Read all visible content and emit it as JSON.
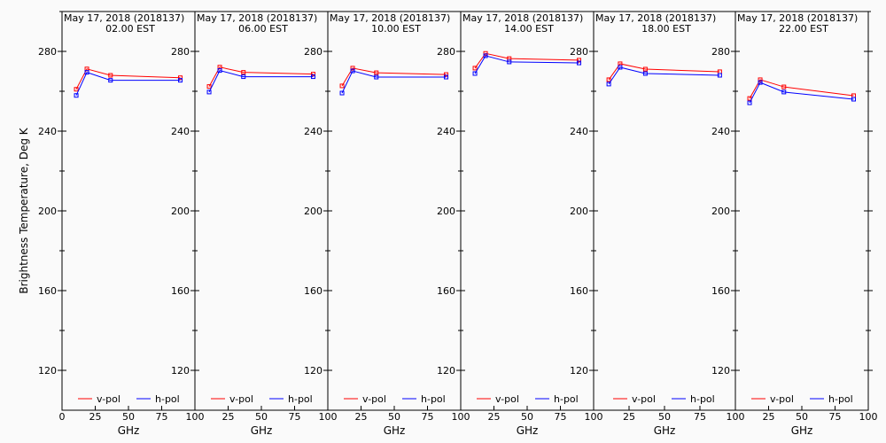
{
  "chart_data": {
    "type": "line",
    "ylabel": "Brightness Temperature, Deg K",
    "xlabel": "GHz",
    "xlim": [
      0,
      100
    ],
    "ylim": [
      100,
      300
    ],
    "x_ticks": [
      "0",
      "25",
      "50",
      "75",
      "100"
    ],
    "y_ticks": [
      "120",
      "160",
      "200",
      "240",
      "280"
    ],
    "legend": [
      "v-pol",
      "h-pol"
    ],
    "legend_placement": "bottom",
    "colors": {
      "v-pol": "#ff0000",
      "h-pol": "#0000ff"
    },
    "x": [
      10.7,
      18.7,
      36.5,
      89.0
    ],
    "panels": [
      {
        "title": "May 17, 2018 (2018137)",
        "subtitle": "02.00 EST",
        "series": [
          {
            "name": "v-pol",
            "values": [
              261.0,
              271.2,
              268.0,
              266.8
            ]
          },
          {
            "name": "h-pol",
            "values": [
              257.9,
              269.5,
              265.5,
              265.5
            ]
          }
        ]
      },
      {
        "title": "May 17, 2018 (2018137)",
        "subtitle": "06.00 EST",
        "series": [
          {
            "name": "v-pol",
            "values": [
              262.4,
              272.1,
              269.5,
              268.6
            ]
          },
          {
            "name": "h-pol",
            "values": [
              259.6,
              270.4,
              267.3,
              267.3
            ]
          }
        ]
      },
      {
        "title": "May 17, 2018 (2018137)",
        "subtitle": "10.00 EST",
        "series": [
          {
            "name": "v-pol",
            "values": [
              262.7,
              271.6,
              269.3,
              268.4
            ]
          },
          {
            "name": "h-pol",
            "values": [
              259.1,
              270.2,
              267.1,
              267.1
            ]
          }
        ]
      },
      {
        "title": "May 17, 2018 (2018137)",
        "subtitle": "14.00 EST",
        "series": [
          {
            "name": "v-pol",
            "values": [
              271.6,
              279.0,
              276.4,
              275.6
            ]
          },
          {
            "name": "h-pol",
            "values": [
              268.9,
              277.8,
              274.7,
              274.2
            ]
          }
        ]
      },
      {
        "title": "May 17, 2018 (2018137)",
        "subtitle": "18.00 EST",
        "series": [
          {
            "name": "v-pol",
            "values": [
              265.8,
              273.8,
              271.1,
              269.8
            ]
          },
          {
            "name": "h-pol",
            "values": [
              263.6,
              272.0,
              268.9,
              268.0
            ]
          }
        ]
      },
      {
        "title": "May 17, 2018 (2018137)",
        "subtitle": "22.00 EST",
        "series": [
          {
            "name": "v-pol",
            "values": [
              256.4,
              265.8,
              262.2,
              257.8
            ]
          },
          {
            "name": "h-pol",
            "values": [
              254.2,
              264.4,
              259.6,
              256.0
            ]
          }
        ]
      }
    ]
  }
}
